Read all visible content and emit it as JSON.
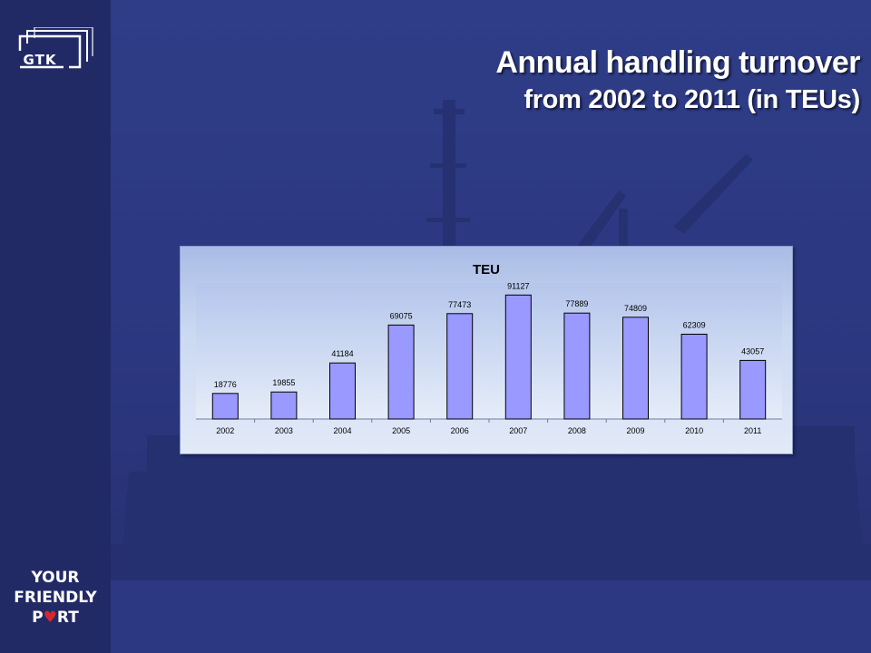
{
  "brand": {
    "logo_text": "GTK",
    "slogan_line1": "YOUR",
    "slogan_line2": "FRIENDLY",
    "slogan_line3_start": "P",
    "slogan_line3_heart": "♥",
    "slogan_line3_end": "RT"
  },
  "title": {
    "line1": "Annual handling turnover",
    "line2": "from 2002 to 2011 (in TEUs)"
  },
  "colors": {
    "background": "#2a3578",
    "sidebar": "#222a66",
    "bar_fill": "#9999ff",
    "bar_stroke": "#000000",
    "heart": "#d82630"
  },
  "chart_data": {
    "type": "bar",
    "title": "TEU",
    "categories": [
      "2002",
      "2003",
      "2004",
      "2005",
      "2006",
      "2007",
      "2008",
      "2009",
      "2010",
      "2011"
    ],
    "values": [
      18776,
      19855,
      41184,
      69075,
      77473,
      91127,
      77889,
      74809,
      62309,
      43057
    ],
    "data_labels": [
      "18776",
      "19855",
      "41184",
      "69075",
      "77473",
      "91127",
      "77889",
      "74809",
      "62309",
      "43057"
    ],
    "xlabel": "",
    "ylabel": "",
    "ylim": [
      0,
      100000
    ],
    "grid": false,
    "legend": "none"
  }
}
